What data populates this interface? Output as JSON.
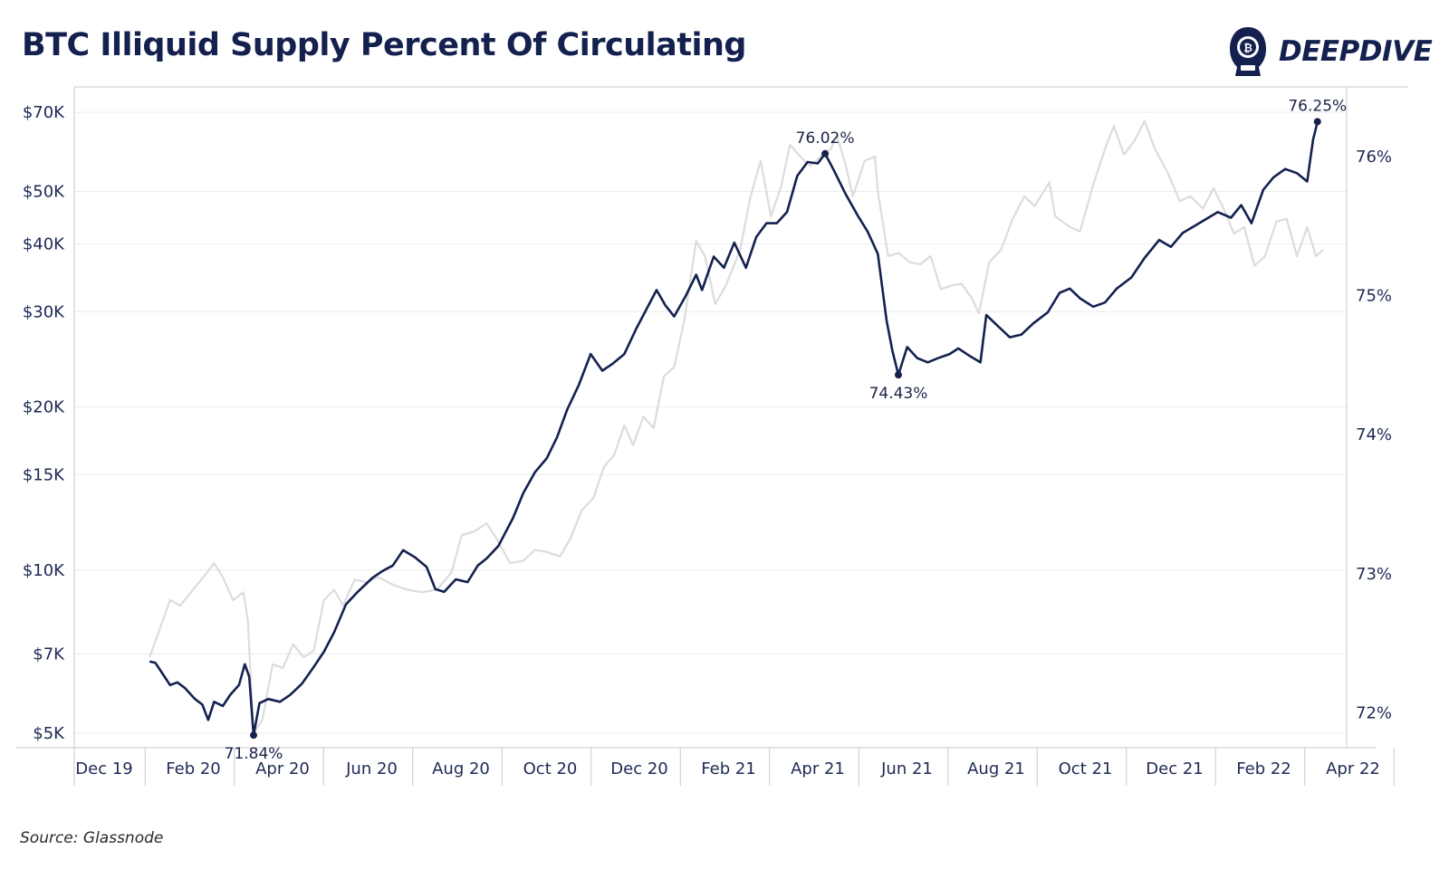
{
  "title": "BTC Illiquid Supply Percent Of Circulating",
  "logo": {
    "text": "DEEPDIVE",
    "icon": "diving-helmet-icon"
  },
  "source": "Source: Glassnode",
  "colors": {
    "illiquid": "#14214f",
    "price": "#dcdcdc",
    "grid": "#ececec",
    "axis": "#c8c8c8"
  },
  "chart_data": {
    "type": "line",
    "title": "BTC Illiquid Supply Percent Of Circulating",
    "grid": true,
    "x_ticks": [
      "Dec 19",
      "Feb 20",
      "Apr 20",
      "Jun 20",
      "Aug 20",
      "Oct 20",
      "Dec 20",
      "Feb 21",
      "Apr 21",
      "Jun 21",
      "Aug 21",
      "Oct 21",
      "Dec 21",
      "Feb 22",
      "Apr 22"
    ],
    "y_left": {
      "scale": "log",
      "ticks": [
        "$5K",
        "$7K",
        "$10K",
        "$15K",
        "$20K",
        "$30K",
        "$40K",
        "$50K",
        "$70K"
      ],
      "tick_values": [
        5000,
        7000,
        10000,
        15000,
        20000,
        30000,
        40000,
        50000,
        70000
      ],
      "range": [
        4700,
        78000
      ]
    },
    "y_right": {
      "scale": "linear",
      "ticks": [
        "72%",
        "73%",
        "74%",
        "75%",
        "76%"
      ],
      "tick_values": [
        72,
        73,
        74,
        75,
        76
      ],
      "range": [
        71.75,
        76.5
      ]
    },
    "series": [
      {
        "axis": "right",
        "points": [
          [
            "2020-01-01",
            72.37
          ],
          [
            "2020-01-05",
            72.36
          ],
          [
            "2020-01-10",
            72.28
          ],
          [
            "2020-01-15",
            72.2
          ],
          [
            "2020-01-20",
            72.22
          ],
          [
            "2020-01-25",
            72.18
          ],
          [
            "2020-02-01",
            72.1
          ],
          [
            "2020-02-06",
            72.06
          ],
          [
            "2020-02-10",
            71.95
          ],
          [
            "2020-02-14",
            72.08
          ],
          [
            "2020-02-20",
            72.05
          ],
          [
            "2020-02-25",
            72.13
          ],
          [
            "2020-03-02",
            72.2
          ],
          [
            "2020-03-06",
            72.35
          ],
          [
            "2020-03-09",
            72.26
          ],
          [
            "2020-03-12",
            71.84
          ],
          [
            "2020-03-16",
            72.07
          ],
          [
            "2020-03-22",
            72.1
          ],
          [
            "2020-03-30",
            72.08
          ],
          [
            "2020-04-06",
            72.13
          ],
          [
            "2020-04-14",
            72.21
          ],
          [
            "2020-04-22",
            72.33
          ],
          [
            "2020-04-29",
            72.44
          ],
          [
            "2020-05-06",
            72.58
          ],
          [
            "2020-05-14",
            72.78
          ],
          [
            "2020-05-22",
            72.87
          ],
          [
            "2020-06-01",
            72.97
          ],
          [
            "2020-06-08",
            73.02
          ],
          [
            "2020-06-15",
            73.06
          ],
          [
            "2020-06-22",
            73.17
          ],
          [
            "2020-06-30",
            73.12
          ],
          [
            "2020-07-08",
            73.05
          ],
          [
            "2020-07-14",
            72.89
          ],
          [
            "2020-07-20",
            72.87
          ],
          [
            "2020-07-28",
            72.96
          ],
          [
            "2020-08-05",
            72.94
          ],
          [
            "2020-08-12",
            73.06
          ],
          [
            "2020-08-18",
            73.11
          ],
          [
            "2020-08-26",
            73.2
          ],
          [
            "2020-09-05",
            73.4
          ],
          [
            "2020-09-12",
            73.58
          ],
          [
            "2020-09-20",
            73.73
          ],
          [
            "2020-09-28",
            73.83
          ],
          [
            "2020-10-05",
            73.98
          ],
          [
            "2020-10-12",
            74.18
          ],
          [
            "2020-10-20",
            74.36
          ],
          [
            "2020-10-28",
            74.58
          ],
          [
            "2020-11-05",
            74.46
          ],
          [
            "2020-11-12",
            74.51
          ],
          [
            "2020-11-20",
            74.58
          ],
          [
            "2020-11-28",
            74.76
          ],
          [
            "2020-12-05",
            74.9
          ],
          [
            "2020-12-12",
            75.04
          ],
          [
            "2020-12-18",
            74.93
          ],
          [
            "2020-12-24",
            74.85
          ],
          [
            "2021-01-01",
            75.0
          ],
          [
            "2021-01-08",
            75.15
          ],
          [
            "2021-01-12",
            75.04
          ],
          [
            "2021-01-20",
            75.28
          ],
          [
            "2021-01-27",
            75.2
          ],
          [
            "2021-02-03",
            75.38
          ],
          [
            "2021-02-11",
            75.2
          ],
          [
            "2021-02-18",
            75.42
          ],
          [
            "2021-02-25",
            75.52
          ],
          [
            "2021-03-04",
            75.52
          ],
          [
            "2021-03-11",
            75.6
          ],
          [
            "2021-03-18",
            75.86
          ],
          [
            "2021-03-25",
            75.96
          ],
          [
            "2021-04-01",
            75.95
          ],
          [
            "2021-04-06",
            76.02
          ],
          [
            "2021-04-12",
            75.9
          ],
          [
            "2021-04-20",
            75.73
          ],
          [
            "2021-04-28",
            75.58
          ],
          [
            "2021-05-05",
            75.46
          ],
          [
            "2021-05-12",
            75.3
          ],
          [
            "2021-05-18",
            74.82
          ],
          [
            "2021-05-22",
            74.6
          ],
          [
            "2021-05-26",
            74.43
          ],
          [
            "2021-06-01",
            74.63
          ],
          [
            "2021-06-08",
            74.55
          ],
          [
            "2021-06-15",
            74.52
          ],
          [
            "2021-06-22",
            74.55
          ],
          [
            "2021-06-30",
            74.58
          ],
          [
            "2021-07-06",
            74.62
          ],
          [
            "2021-07-13",
            74.57
          ],
          [
            "2021-07-21",
            74.52
          ],
          [
            "2021-07-25",
            74.86
          ],
          [
            "2021-08-02",
            74.78
          ],
          [
            "2021-08-10",
            74.7
          ],
          [
            "2021-08-18",
            74.72
          ],
          [
            "2021-08-26",
            74.8
          ],
          [
            "2021-09-05",
            74.88
          ],
          [
            "2021-09-13",
            75.02
          ],
          [
            "2021-09-20",
            75.05
          ],
          [
            "2021-09-27",
            74.98
          ],
          [
            "2021-10-06",
            74.92
          ],
          [
            "2021-10-14",
            74.95
          ],
          [
            "2021-10-22",
            75.05
          ],
          [
            "2021-11-01",
            75.13
          ],
          [
            "2021-11-10",
            75.27
          ],
          [
            "2021-11-20",
            75.4
          ],
          [
            "2021-11-28",
            75.35
          ],
          [
            "2021-12-06",
            75.45
          ],
          [
            "2021-12-14",
            75.5
          ],
          [
            "2021-12-22",
            75.55
          ],
          [
            "2021-12-30",
            75.6
          ],
          [
            "2022-01-08",
            75.56
          ],
          [
            "2022-01-15",
            75.65
          ],
          [
            "2022-01-22",
            75.52
          ],
          [
            "2022-01-30",
            75.76
          ],
          [
            "2022-02-06",
            75.85
          ],
          [
            "2022-02-14",
            75.91
          ],
          [
            "2022-02-22",
            75.88
          ],
          [
            "2022-03-01",
            75.82
          ],
          [
            "2022-03-05",
            76.12
          ],
          [
            "2022-03-08",
            76.25
          ]
        ]
      },
      {
        "axis": "left",
        "points": [
          [
            "2020-01-01",
            6900
          ],
          [
            "2020-01-08",
            7800
          ],
          [
            "2020-01-15",
            8800
          ],
          [
            "2020-01-22",
            8600
          ],
          [
            "2020-02-01",
            9300
          ],
          [
            "2020-02-08",
            9800
          ],
          [
            "2020-02-14",
            10300
          ],
          [
            "2020-02-20",
            9700
          ],
          [
            "2020-02-27",
            8800
          ],
          [
            "2020-03-05",
            9100
          ],
          [
            "2020-03-08",
            8100
          ],
          [
            "2020-03-12",
            5000
          ],
          [
            "2020-03-18",
            5300
          ],
          [
            "2020-03-25",
            6700
          ],
          [
            "2020-04-01",
            6600
          ],
          [
            "2020-04-08",
            7300
          ],
          [
            "2020-04-15",
            6900
          ],
          [
            "2020-04-22",
            7100
          ],
          [
            "2020-04-29",
            8800
          ],
          [
            "2020-05-06",
            9200
          ],
          [
            "2020-05-12",
            8600
          ],
          [
            "2020-05-20",
            9600
          ],
          [
            "2020-05-28",
            9500
          ],
          [
            "2020-06-05",
            9700
          ],
          [
            "2020-06-15",
            9400
          ],
          [
            "2020-06-25",
            9200
          ],
          [
            "2020-07-05",
            9100
          ],
          [
            "2020-07-15",
            9200
          ],
          [
            "2020-07-25",
            9900
          ],
          [
            "2020-08-01",
            11600
          ],
          [
            "2020-08-10",
            11800
          ],
          [
            "2020-08-18",
            12200
          ],
          [
            "2020-08-25",
            11400
          ],
          [
            "2020-09-03",
            10300
          ],
          [
            "2020-09-12",
            10400
          ],
          [
            "2020-09-20",
            10900
          ],
          [
            "2020-09-28",
            10800
          ],
          [
            "2020-10-07",
            10600
          ],
          [
            "2020-10-14",
            11400
          ],
          [
            "2020-10-22",
            12900
          ],
          [
            "2020-10-30",
            13600
          ],
          [
            "2020-11-06",
            15500
          ],
          [
            "2020-11-13",
            16300
          ],
          [
            "2020-11-20",
            18500
          ],
          [
            "2020-11-26",
            17000
          ],
          [
            "2020-12-03",
            19200
          ],
          [
            "2020-12-10",
            18300
          ],
          [
            "2020-12-17",
            22800
          ],
          [
            "2020-12-24",
            23700
          ],
          [
            "2020-12-31",
            29000
          ],
          [
            "2021-01-08",
            40500
          ],
          [
            "2021-01-14",
            38000
          ],
          [
            "2021-01-21",
            31000
          ],
          [
            "2021-01-28",
            33400
          ],
          [
            "2021-02-07",
            39000
          ],
          [
            "2021-02-14",
            48800
          ],
          [
            "2021-02-21",
            57000
          ],
          [
            "2021-02-28",
            45000
          ],
          [
            "2021-03-07",
            51000
          ],
          [
            "2021-03-13",
            61000
          ],
          [
            "2021-03-20",
            58000
          ],
          [
            "2021-03-27",
            55700
          ],
          [
            "2021-04-03",
            58000
          ],
          [
            "2021-04-10",
            60000
          ],
          [
            "2021-04-14",
            63500
          ],
          [
            "2021-04-20",
            56000
          ],
          [
            "2021-04-25",
            49000
          ],
          [
            "2021-05-03",
            57000
          ],
          [
            "2021-05-10",
            58000
          ],
          [
            "2021-05-12",
            50000
          ],
          [
            "2021-05-19",
            38000
          ],
          [
            "2021-05-26",
            38500
          ],
          [
            "2021-06-03",
            37000
          ],
          [
            "2021-06-10",
            36700
          ],
          [
            "2021-06-17",
            38000
          ],
          [
            "2021-06-24",
            33000
          ],
          [
            "2021-07-01",
            33500
          ],
          [
            "2021-07-08",
            33800
          ],
          [
            "2021-07-15",
            31800
          ],
          [
            "2021-07-20",
            29800
          ],
          [
            "2021-07-27",
            37000
          ],
          [
            "2021-08-04",
            39000
          ],
          [
            "2021-08-12",
            44500
          ],
          [
            "2021-08-20",
            49000
          ],
          [
            "2021-08-27",
            47000
          ],
          [
            "2021-09-06",
            52000
          ],
          [
            "2021-09-10",
            45000
          ],
          [
            "2021-09-20",
            43000
          ],
          [
            "2021-09-27",
            42200
          ],
          [
            "2021-10-06",
            51500
          ],
          [
            "2021-10-15",
            61000
          ],
          [
            "2021-10-20",
            66000
          ],
          [
            "2021-10-27",
            58500
          ],
          [
            "2021-11-03",
            62000
          ],
          [
            "2021-11-10",
            67500
          ],
          [
            "2021-11-17",
            60000
          ],
          [
            "2021-11-26",
            54000
          ],
          [
            "2021-12-04",
            48000
          ],
          [
            "2021-12-11",
            49000
          ],
          [
            "2021-12-20",
            46500
          ],
          [
            "2021-12-27",
            50700
          ],
          [
            "2022-01-03",
            46500
          ],
          [
            "2022-01-10",
            41800
          ],
          [
            "2022-01-17",
            43000
          ],
          [
            "2022-01-24",
            36500
          ],
          [
            "2022-01-31",
            37900
          ],
          [
            "2022-02-08",
            44000
          ],
          [
            "2022-02-15",
            44500
          ],
          [
            "2022-02-22",
            38000
          ],
          [
            "2022-03-01",
            43000
          ],
          [
            "2022-03-07",
            38000
          ],
          [
            "2022-03-12",
            39000
          ]
        ]
      }
    ],
    "annotations": [
      {
        "date": "2020-03-12",
        "text": "71.84%",
        "position": "below"
      },
      {
        "date": "2021-04-06",
        "text": "76.02%",
        "position": "above"
      },
      {
        "date": "2021-05-26",
        "text": "74.43%",
        "position": "below"
      },
      {
        "date": "2022-03-08",
        "text": "76.25%",
        "position": "above"
      }
    ]
  }
}
